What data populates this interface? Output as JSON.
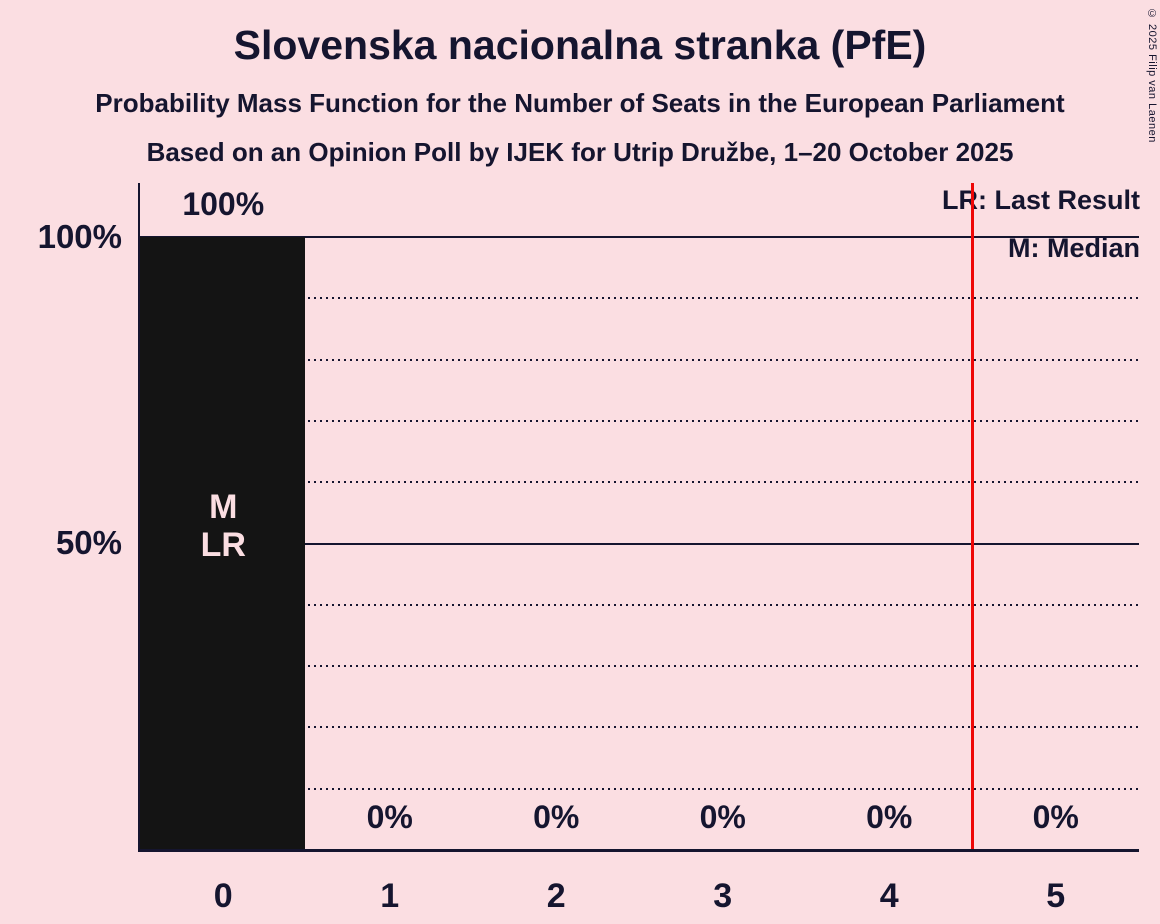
{
  "title": "Slovenska nacionalna stranka (PfE)",
  "subtitle": "Probability Mass Function for the Number of Seats in the European Parliament",
  "source_line": "Based on an Opinion Poll by IJEK for Utrip Družbe, 1–20 October 2025",
  "copyright": "© 2025 Filip van Laenen",
  "legend": {
    "lr": "LR: Last Result",
    "m": "M: Median"
  },
  "y_axis": {
    "labels": [
      {
        "text": "100%",
        "percent": 100
      },
      {
        "text": "50%",
        "percent": 50
      }
    ]
  },
  "chart_data": {
    "type": "bar",
    "title": "Slovenska nacionalna stranka (PfE)",
    "categories": [
      "0",
      "1",
      "2",
      "3",
      "4",
      "5"
    ],
    "values": [
      100,
      0,
      0,
      0,
      0,
      0
    ],
    "bar_labels": [
      "100%",
      "0%",
      "0%",
      "0%",
      "0%",
      "0%"
    ],
    "ylim": [
      0,
      100
    ],
    "gridlines": [
      {
        "percent": 100,
        "style": "solid"
      },
      {
        "percent": 90,
        "style": "dotted"
      },
      {
        "percent": 80,
        "style": "dotted"
      },
      {
        "percent": 70,
        "style": "dotted"
      },
      {
        "percent": 60,
        "style": "dotted"
      },
      {
        "percent": 50,
        "style": "solid"
      },
      {
        "percent": 40,
        "style": "dotted"
      },
      {
        "percent": 30,
        "style": "dotted"
      },
      {
        "percent": 20,
        "style": "dotted"
      },
      {
        "percent": 10,
        "style": "dotted"
      }
    ],
    "annotations": {
      "bar_text": [
        "M",
        "LR"
      ],
      "bar_text_column": 0,
      "median_seats": "0",
      "last_result_seats": "0",
      "red_line_x": 4.5
    },
    "colors": {
      "background": "#fbdee2",
      "bar": "#141414",
      "text": "#15152f",
      "bar_inner_label": "#fbdee2",
      "red_line": "#ee0707"
    },
    "legend_position": "top-right",
    "legend_entries": [
      "LR: Last Result",
      "M: Median"
    ]
  }
}
